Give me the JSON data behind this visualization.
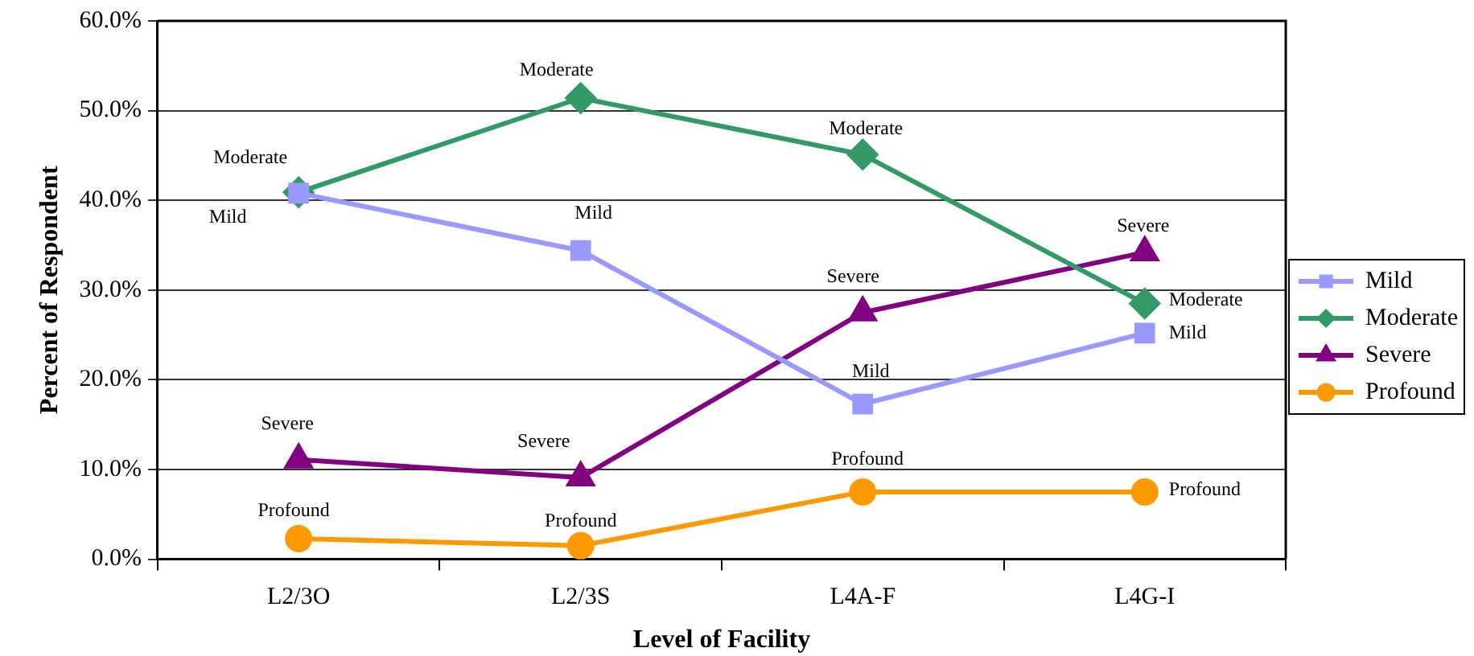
{
  "chart_data": {
    "type": "line",
    "xlabel": "Level of Facility",
    "ylabel": "Percent of Respondent",
    "categories": [
      "L2/3O",
      "L2/3S",
      "L4A-F",
      "L4G-I"
    ],
    "series": [
      {
        "name": "Mild",
        "color": "#9999ff",
        "marker": "square",
        "values": [
          40.8,
          34.4,
          17.3,
          25.2
        ]
      },
      {
        "name": "Moderate",
        "color": "#339966",
        "marker": "diamond",
        "values": [
          40.9,
          51.4,
          45.1,
          28.5
        ]
      },
      {
        "name": "Severe",
        "color": "#800080",
        "marker": "triangle",
        "values": [
          11.1,
          9.1,
          27.5,
          34.2
        ]
      },
      {
        "name": "Profound",
        "color": "#ff9900",
        "marker": "circle",
        "values": [
          2.3,
          1.5,
          7.5,
          7.5
        ]
      }
    ],
    "ylim": [
      0,
      60
    ],
    "yticks": [
      {
        "value": 0,
        "label": "0.0%"
      },
      {
        "value": 10,
        "label": "10.0%"
      },
      {
        "value": 20,
        "label": "20.0%"
      },
      {
        "value": 30,
        "label": "30.0%"
      },
      {
        "value": 40,
        "label": "40.0%"
      },
      {
        "value": 50,
        "label": "50.0%"
      },
      {
        "value": 60,
        "label": "60.0%"
      }
    ],
    "grid": "y",
    "legend": "right",
    "line_style": "solid",
    "annotations": [
      {
        "text": "Moderate",
        "x": "L2/3O",
        "y": 40.9
      },
      {
        "text": "Mild",
        "x": "L2/3O",
        "y": 40.8
      },
      {
        "text": "Severe",
        "x": "L2/3O",
        "y": 11.1
      },
      {
        "text": "Profound",
        "x": "L2/3O",
        "y": 2.3
      },
      {
        "text": "Moderate",
        "x": "L2/3S",
        "y": 51.4
      },
      {
        "text": "Mild",
        "x": "L2/3S",
        "y": 34.4
      },
      {
        "text": "Severe",
        "x": "L2/3S",
        "y": 9.1
      },
      {
        "text": "Profound",
        "x": "L2/3S",
        "y": 1.5
      },
      {
        "text": "Moderate",
        "x": "L4A-F",
        "y": 45.1
      },
      {
        "text": "Severe",
        "x": "L4A-F",
        "y": 27.5
      },
      {
        "text": "Mild",
        "x": "L4A-F",
        "y": 17.3
      },
      {
        "text": "Profound",
        "x": "L4A-F",
        "y": 7.5
      },
      {
        "text": "Severe",
        "x": "L4G-I",
        "y": 34.2
      },
      {
        "text": "Moderate",
        "x": "L4G-I",
        "y": 28.5
      },
      {
        "text": "Mild",
        "x": "L4G-I",
        "y": 25.2
      },
      {
        "text": "Profound",
        "x": "L4G-I",
        "y": 7.5
      }
    ]
  }
}
